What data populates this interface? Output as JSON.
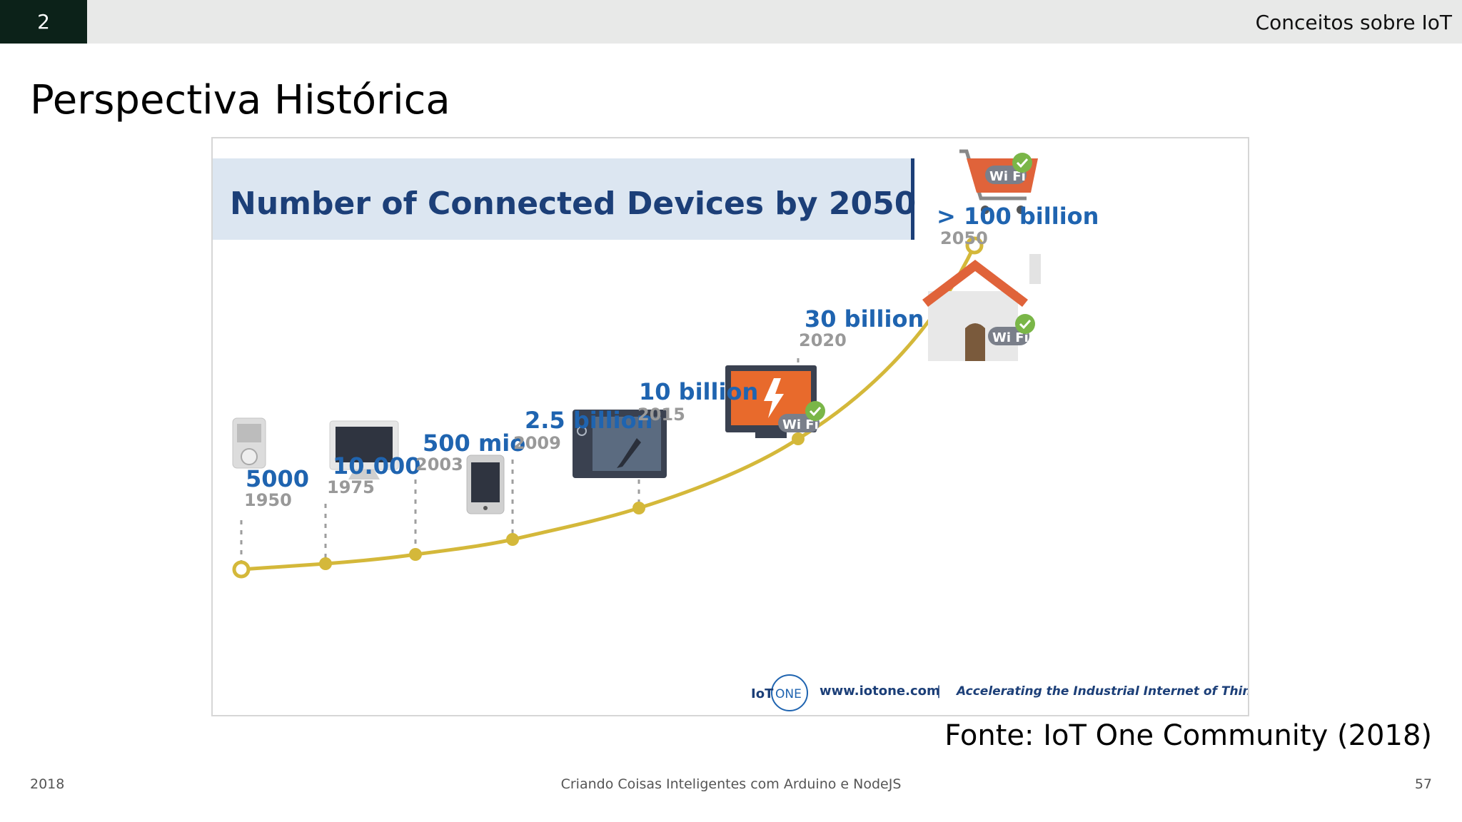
{
  "header": {
    "slide_section_number": "2",
    "section_title": "Conceitos sobre IoT"
  },
  "page_title": "Perspectiva Histórica",
  "chart_data": {
    "type": "line",
    "title": "Number of Connected Devices by 2050",
    "points": [
      {
        "year": "1950",
        "label": "5000",
        "icon": "ipod-icon"
      },
      {
        "year": "1975",
        "label": "10.000",
        "icon": "computer-monitor-icon"
      },
      {
        "year": "2003",
        "label": "500 mio",
        "icon": "smartphone-icon"
      },
      {
        "year": "2009",
        "label": "2.5 billion",
        "icon": "tablet-icon"
      },
      {
        "year": "2015",
        "label": "10 billion",
        "icon": "smart-tv-wifi-icon"
      },
      {
        "year": "2020",
        "label": "30 billion",
        "icon": "smart-home-wifi-icon"
      },
      {
        "year": "2050",
        "label": "> 100 billion",
        "icon": "shopping-cart-wifi-icon"
      }
    ],
    "colors": {
      "curve": "#d4b83a",
      "value": "#1f64b0",
      "year": "#999999",
      "title": "#1c3f78",
      "title_bg": "#dce6f1"
    },
    "wifi_badge": "Wi Fi",
    "branding": {
      "logo_iot": "IoT",
      "logo_one": "ONE",
      "website": "www.iotone.com",
      "separator": "|",
      "tagline": "Accelerating the Industrial Internet of Things"
    }
  },
  "source": "Fonte: IoT One Community (2018)",
  "footer": {
    "year": "2018",
    "course": "Criando Coisas Inteligentes com Arduino e NodeJS",
    "page": "57"
  }
}
